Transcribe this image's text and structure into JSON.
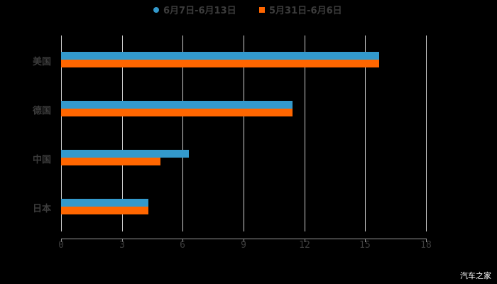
{
  "chart_data": {
    "type": "bar",
    "orientation": "horizontal",
    "title": "",
    "categories": [
      "美国",
      "德国",
      "中国",
      "日本"
    ],
    "series": [
      {
        "name": "6月7日-6月13日",
        "color": "#3399cc",
        "values": [
          15.7,
          11.4,
          6.3,
          4.3
        ]
      },
      {
        "name": "5月31日-6月6日",
        "color": "#ff6600",
        "values": [
          15.7,
          11.4,
          4.9,
          4.3
        ]
      }
    ],
    "xlabel": "",
    "ylabel": "",
    "xlim": [
      0,
      18
    ],
    "xticks": [
      "0",
      "3",
      "6",
      "9",
      "12",
      "15",
      "18"
    ],
    "grid": true,
    "legend_position": "top"
  },
  "legend": {
    "items": [
      {
        "label": "6月7日-6月13日",
        "color": "#3399cc",
        "marker": "circle"
      },
      {
        "label": "5月31日-6月6日",
        "color": "#ff6600",
        "marker": "square"
      }
    ]
  },
  "watermark": "汽车之家"
}
